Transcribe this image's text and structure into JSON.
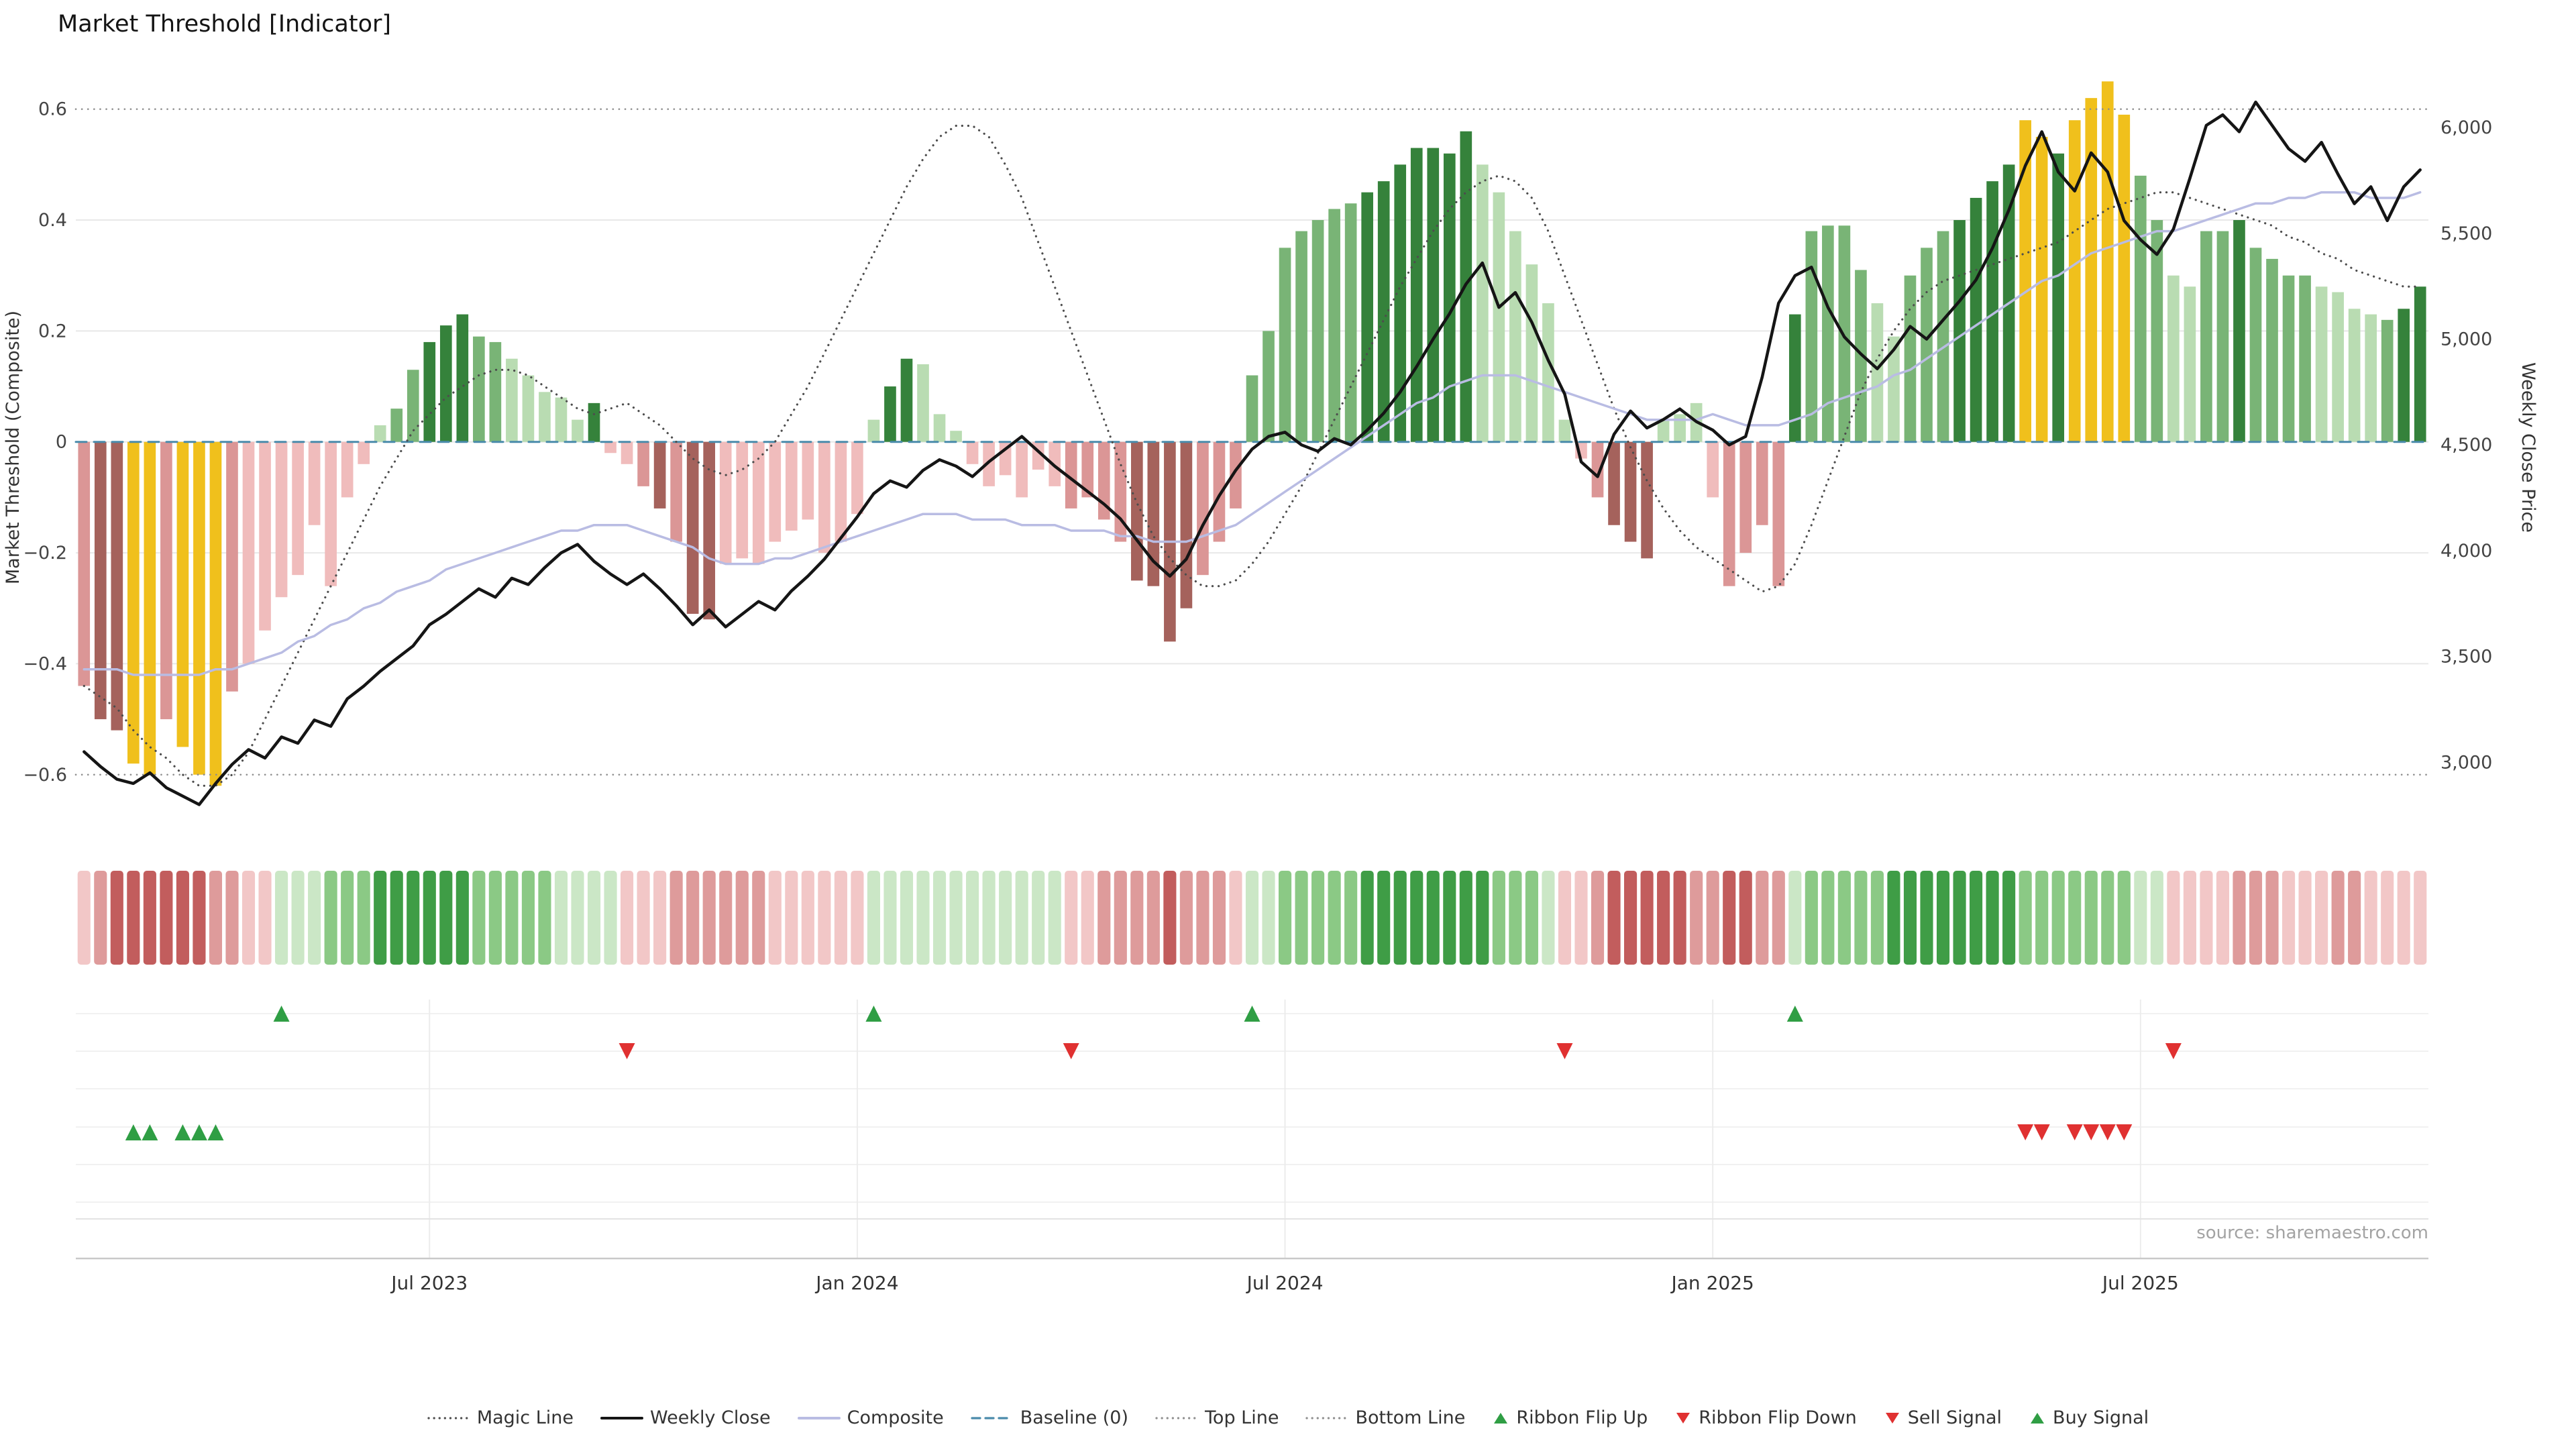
{
  "title": "Market Threshold [Indicator]",
  "source": "source: sharemaestro.com",
  "axes": {
    "left_title": "Market Threshold (Composite)",
    "right_title": "Weekly Close Price",
    "left_ticks": [
      0.6,
      0.4,
      0.2,
      0,
      -0.2,
      -0.4,
      -0.6
    ],
    "right_ticks": [
      6000,
      5500,
      5000,
      4500,
      4000,
      3500,
      3000
    ],
    "x_ticks": [
      {
        "week": 21,
        "label": "Jul 2023"
      },
      {
        "week": 47,
        "label": "Jan 2024"
      },
      {
        "week": 73,
        "label": "Jul 2024"
      },
      {
        "week": 99,
        "label": "Jan 2025"
      },
      {
        "week": 125,
        "label": "Jul 2025"
      }
    ]
  },
  "legend": [
    {
      "label": "Magic Line",
      "type": "dotted",
      "color": "#4d4d4d"
    },
    {
      "label": "Weekly Close",
      "type": "solid",
      "color": "#151515"
    },
    {
      "label": "Composite",
      "type": "solid",
      "color": "#b9bce3"
    },
    {
      "label": "Baseline (0)",
      "type": "dashed",
      "color": "#4a8bab"
    },
    {
      "label": "Top Line",
      "type": "dotted",
      "color": "#8f8f8f"
    },
    {
      "label": "Bottom Line",
      "type": "dotted",
      "color": "#8f8f8f"
    },
    {
      "label": "Ribbon Flip Up",
      "type": "triangle-up",
      "color": "#2f9e44"
    },
    {
      "label": "Ribbon Flip Down",
      "type": "triangle-down",
      "color": "#e03131"
    },
    {
      "label": "Sell Signal",
      "type": "triangle-down",
      "color": "#e03131"
    },
    {
      "label": "Buy Signal",
      "type": "triangle-up",
      "color": "#2f9e44"
    }
  ],
  "chart_data": {
    "type": "bar",
    "x_unit": "week",
    "n_weeks": 143,
    "left_range": [
      -0.72,
      0.7
    ],
    "right_range": [
      2627,
      6349
    ],
    "reference_lines": [
      {
        "name": "Top Line",
        "value": 0.6,
        "color": "#8f8f8f",
        "style": "dot"
      },
      {
        "name": "Baseline (0)",
        "value": 0,
        "color": "#4a8bab",
        "style": "dash"
      },
      {
        "name": "Bottom Line",
        "value": -0.6,
        "color": "#8f8f8f",
        "style": "dot"
      }
    ],
    "bar_palette": {
      "g1": "#b9dcb2",
      "g2": "#79b476",
      "g3": "#35823b",
      "au": "#f0c01c",
      "r1": "#f0bcbc",
      "r2": "#db9696",
      "r3": "#a5625c"
    },
    "ribbon_palette": {
      "G1": "#cbe7c6",
      "G2": "#8bc985",
      "G3": "#3f9d46",
      "R1": "#f2c7c7",
      "R2": "#de9b9b",
      "R3": "#c25d5d"
    },
    "threshold": {
      "values": [
        -0.44,
        -0.5,
        -0.52,
        -0.58,
        -0.6,
        -0.5,
        -0.55,
        -0.6,
        -0.62,
        -0.45,
        -0.4,
        -0.34,
        -0.28,
        -0.24,
        -0.15,
        -0.26,
        -0.1,
        -0.04,
        0.03,
        0.06,
        0.13,
        0.18,
        0.21,
        0.23,
        0.19,
        0.18,
        0.15,
        0.12,
        0.09,
        0.08,
        0.04,
        0.07,
        -0.02,
        -0.04,
        -0.08,
        -0.12,
        -0.18,
        -0.31,
        -0.32,
        -0.22,
        -0.21,
        -0.22,
        -0.18,
        -0.16,
        -0.14,
        -0.2,
        -0.18,
        -0.13,
        0.04,
        0.1,
        0.15,
        0.14,
        0.05,
        0.02,
        -0.04,
        -0.08,
        -0.06,
        -0.1,
        -0.05,
        -0.08,
        -0.12,
        -0.1,
        -0.14,
        -0.18,
        -0.25,
        -0.26,
        -0.36,
        -0.3,
        -0.24,
        -0.18,
        -0.12,
        0.12,
        0.2,
        0.35,
        0.38,
        0.4,
        0.42,
        0.43,
        0.45,
        0.47,
        0.5,
        0.53,
        0.53,
        0.52,
        0.56,
        0.5,
        0.45,
        0.38,
        0.32,
        0.25,
        0.04,
        -0.03,
        -0.1,
        -0.15,
        -0.18,
        -0.21,
        0.04,
        0.05,
        0.07,
        -0.1,
        -0.26,
        -0.2,
        -0.15,
        -0.26,
        0.23,
        0.38,
        0.39,
        0.39,
        0.31,
        0.25,
        0.19,
        0.3,
        0.35,
        0.38,
        0.4,
        0.44,
        0.47,
        0.5,
        0.58,
        0.55,
        0.52,
        0.58,
        0.62,
        0.65,
        0.59,
        0.48,
        0.4,
        0.3,
        0.28,
        0.38,
        0.38,
        0.4,
        0.35,
        0.33,
        0.3,
        0.3,
        0.28,
        0.27,
        0.24,
        0.23,
        0.22,
        0.24,
        0.28
      ],
      "colors": [
        "r2",
        "r3",
        "r3",
        "au",
        "au",
        "r2",
        "au",
        "au",
        "au",
        "r2",
        "r1",
        "r1",
        "r1",
        "r1",
        "r1",
        "r1",
        "r1",
        "r1",
        "g1",
        "g2",
        "g2",
        "g3",
        "g3",
        "g3",
        "g2",
        "g2",
        "g1",
        "g1",
        "g1",
        "g1",
        "g1",
        "g3",
        "r1",
        "r1",
        "r2",
        "r3",
        "r2",
        "r3",
        "r3",
        "r1",
        "r1",
        "r1",
        "r1",
        "r1",
        "r1",
        "r1",
        "r1",
        "r1",
        "g1",
        "g3",
        "g3",
        "g1",
        "g1",
        "g1",
        "r1",
        "r1",
        "r1",
        "r1",
        "r1",
        "r1",
        "r2",
        "r2",
        "r2",
        "r2",
        "r3",
        "r3",
        "r3",
        "r3",
        "r2",
        "r2",
        "r2",
        "g2",
        "g2",
        "g2",
        "g2",
        "g2",
        "g2",
        "g2",
        "g3",
        "g3",
        "g3",
        "g3",
        "g3",
        "g3",
        "g3",
        "g1",
        "g1",
        "g1",
        "g1",
        "g1",
        "g1",
        "r1",
        "r2",
        "r3",
        "r3",
        "r3",
        "g1",
        "g1",
        "g1",
        "r1",
        "r2",
        "r2",
        "r2",
        "r2",
        "g3",
        "g2",
        "g2",
        "g2",
        "g2",
        "g1",
        "g1",
        "g2",
        "g2",
        "g2",
        "g3",
        "g3",
        "g3",
        "g3",
        "au",
        "au",
        "g3",
        "au",
        "au",
        "au",
        "au",
        "g2",
        "g2",
        "g1",
        "g1",
        "g2",
        "g2",
        "g3",
        "g2",
        "g2",
        "g2",
        "g2",
        "g1",
        "g1",
        "g1",
        "g1",
        "g2",
        "g3",
        "g3"
      ]
    },
    "series": [
      {
        "name": "Magic Line",
        "axis": "left",
        "color": "#4d4d4d",
        "style": "dot",
        "width": 3.2,
        "values": [
          -0.44,
          -0.46,
          -0.48,
          -0.52,
          -0.55,
          -0.57,
          -0.6,
          -0.62,
          -0.62,
          -0.6,
          -0.56,
          -0.5,
          -0.44,
          -0.38,
          -0.32,
          -0.26,
          -0.2,
          -0.14,
          -0.08,
          -0.03,
          0.02,
          0.05,
          0.08,
          0.1,
          0.12,
          0.13,
          0.13,
          0.12,
          0.1,
          0.08,
          0.06,
          0.05,
          0.06,
          0.07,
          0.05,
          0.03,
          0.0,
          -0.03,
          -0.05,
          -0.06,
          -0.05,
          -0.03,
          0.0,
          0.05,
          0.1,
          0.16,
          0.22,
          0.28,
          0.34,
          0.4,
          0.46,
          0.51,
          0.55,
          0.57,
          0.57,
          0.55,
          0.5,
          0.44,
          0.36,
          0.28,
          0.2,
          0.12,
          0.04,
          -0.04,
          -0.11,
          -0.17,
          -0.21,
          -0.24,
          -0.26,
          -0.26,
          -0.25,
          -0.22,
          -0.18,
          -0.13,
          -0.08,
          -0.02,
          0.04,
          0.1,
          0.16,
          0.22,
          0.28,
          0.33,
          0.38,
          0.42,
          0.45,
          0.47,
          0.48,
          0.47,
          0.44,
          0.38,
          0.3,
          0.22,
          0.14,
          0.06,
          -0.01,
          -0.07,
          -0.12,
          -0.16,
          -0.19,
          -0.21,
          -0.23,
          -0.25,
          -0.27,
          -0.26,
          -0.22,
          -0.15,
          -0.07,
          0.01,
          0.09,
          0.15,
          0.2,
          0.24,
          0.27,
          0.29,
          0.3,
          0.31,
          0.32,
          0.33,
          0.34,
          0.35,
          0.36,
          0.38,
          0.4,
          0.42,
          0.43,
          0.44,
          0.45,
          0.45,
          0.44,
          0.43,
          0.42,
          0.41,
          0.4,
          0.39,
          0.37,
          0.36,
          0.34,
          0.33,
          0.31,
          0.3,
          0.29,
          0.28,
          0.28
        ]
      },
      {
        "name": "Composite",
        "axis": "left",
        "color": "#b9bce3",
        "style": "solid",
        "width": 3.5,
        "values": [
          -0.41,
          -0.41,
          -0.41,
          -0.42,
          -0.42,
          -0.42,
          -0.42,
          -0.42,
          -0.41,
          -0.41,
          -0.4,
          -0.39,
          -0.38,
          -0.36,
          -0.35,
          -0.33,
          -0.32,
          -0.3,
          -0.29,
          -0.27,
          -0.26,
          -0.25,
          -0.23,
          -0.22,
          -0.21,
          -0.2,
          -0.19,
          -0.18,
          -0.17,
          -0.16,
          -0.16,
          -0.15,
          -0.15,
          -0.15,
          -0.16,
          -0.17,
          -0.18,
          -0.19,
          -0.21,
          -0.22,
          -0.22,
          -0.22,
          -0.21,
          -0.21,
          -0.2,
          -0.19,
          -0.18,
          -0.17,
          -0.16,
          -0.15,
          -0.14,
          -0.13,
          -0.13,
          -0.13,
          -0.14,
          -0.14,
          -0.14,
          -0.15,
          -0.15,
          -0.15,
          -0.16,
          -0.16,
          -0.16,
          -0.17,
          -0.17,
          -0.18,
          -0.18,
          -0.18,
          -0.17,
          -0.16,
          -0.15,
          -0.13,
          -0.11,
          -0.09,
          -0.07,
          -0.05,
          -0.03,
          -0.01,
          0.01,
          0.03,
          0.05,
          0.07,
          0.08,
          0.1,
          0.11,
          0.12,
          0.12,
          0.12,
          0.11,
          0.1,
          0.09,
          0.08,
          0.07,
          0.06,
          0.05,
          0.04,
          0.04,
          0.04,
          0.04,
          0.05,
          0.04,
          0.03,
          0.03,
          0.03,
          0.04,
          0.05,
          0.07,
          0.08,
          0.09,
          0.1,
          0.12,
          0.13,
          0.15,
          0.17,
          0.19,
          0.21,
          0.23,
          0.25,
          0.27,
          0.29,
          0.3,
          0.32,
          0.34,
          0.35,
          0.36,
          0.37,
          0.38,
          0.38,
          0.39,
          0.4,
          0.41,
          0.42,
          0.43,
          0.43,
          0.44,
          0.44,
          0.45,
          0.45,
          0.45,
          0.44,
          0.44,
          0.44,
          0.45
        ]
      },
      {
        "name": "Weekly Close",
        "axis": "right",
        "color": "#151515",
        "style": "solid",
        "width": 4.5,
        "values": [
          3050,
          2980,
          2920,
          2900,
          2950,
          2880,
          2840,
          2800,
          2900,
          2990,
          3060,
          3020,
          3120,
          3090,
          3200,
          3170,
          3300,
          3360,
          3430,
          3490,
          3550,
          3650,
          3700,
          3760,
          3820,
          3780,
          3870,
          3840,
          3920,
          3990,
          4030,
          3950,
          3890,
          3840,
          3890,
          3820,
          3740,
          3650,
          3720,
          3640,
          3700,
          3760,
          3720,
          3810,
          3880,
          3960,
          4060,
          4160,
          4270,
          4330,
          4300,
          4380,
          4430,
          4400,
          4350,
          4420,
          4480,
          4540,
          4470,
          4400,
          4340,
          4280,
          4220,
          4150,
          4050,
          3950,
          3880,
          3960,
          4120,
          4260,
          4380,
          4480,
          4540,
          4560,
          4500,
          4470,
          4530,
          4500,
          4570,
          4650,
          4750,
          4870,
          5000,
          5120,
          5260,
          5360,
          5150,
          5220,
          5080,
          4900,
          4740,
          4420,
          4350,
          4550,
          4660,
          4580,
          4620,
          4670,
          4610,
          4570,
          4500,
          4540,
          4820,
          5170,
          5300,
          5340,
          5150,
          5010,
          4930,
          4860,
          4950,
          5060,
          5000,
          5090,
          5180,
          5280,
          5430,
          5610,
          5820,
          5980,
          5790,
          5700,
          5880,
          5790,
          5560,
          5470,
          5400,
          5520,
          5760,
          6010,
          6060,
          5980,
          6120,
          6010,
          5900,
          5840,
          5930,
          5780,
          5640,
          5720,
          5560,
          5720,
          5800
        ]
      }
    ],
    "ribbon": [
      "R1",
      "R2",
      "R3",
      "R3",
      "R3",
      "R3",
      "R3",
      "R3",
      "R2",
      "R2",
      "R1",
      "R1",
      "G1",
      "G1",
      "G1",
      "G2",
      "G2",
      "G2",
      "G3",
      "G3",
      "G3",
      "G3",
      "G3",
      "G3",
      "G2",
      "G2",
      "G2",
      "G2",
      "G2",
      "G1",
      "G1",
      "G1",
      "G1",
      "R1",
      "R1",
      "R1",
      "R2",
      "R2",
      "R2",
      "R2",
      "R2",
      "R2",
      "R1",
      "R1",
      "R1",
      "R1",
      "R1",
      "R1",
      "G1",
      "G1",
      "G1",
      "G1",
      "G1",
      "G1",
      "G1",
      "G1",
      "G1",
      "G1",
      "G1",
      "G1",
      "R1",
      "R1",
      "R2",
      "R2",
      "R2",
      "R2",
      "R3",
      "R2",
      "R2",
      "R2",
      "R1",
      "G1",
      "G1",
      "G2",
      "G2",
      "G2",
      "G2",
      "G2",
      "G3",
      "G3",
      "G3",
      "G3",
      "G3",
      "G3",
      "G3",
      "G3",
      "G2",
      "G2",
      "G2",
      "G1",
      "R1",
      "R1",
      "R2",
      "R3",
      "R3",
      "R3",
      "R3",
      "R3",
      "R2",
      "R2",
      "R3",
      "R3",
      "R2",
      "R2",
      "G1",
      "G2",
      "G2",
      "G2",
      "G2",
      "G2",
      "G3",
      "G3",
      "G3",
      "G3",
      "G3",
      "G3",
      "G3",
      "G3",
      "G2",
      "G2",
      "G2",
      "G2",
      "G2",
      "G2",
      "G2",
      "G1",
      "G1",
      "R1",
      "R1",
      "R1",
      "R1",
      "R2",
      "R2",
      "R2",
      "R1",
      "R1",
      "R1",
      "R2",
      "R2",
      "R1",
      "R1",
      "R1",
      "R1"
    ],
    "signals": {
      "ribbon_flip_up": {
        "weeks": [
          12,
          48,
          71,
          104
        ],
        "color": "#2f9e44"
      },
      "ribbon_flip_down": {
        "weeks": [
          33,
          60,
          90,
          127
        ],
        "color": "#e03131"
      },
      "buy": {
        "weeks": [
          3,
          4,
          6,
          7,
          8
        ],
        "color": "#2f9e44"
      },
      "sell": {
        "weeks": [
          118,
          119,
          121,
          122,
          123,
          124
        ],
        "color": "#e03131"
      }
    }
  }
}
